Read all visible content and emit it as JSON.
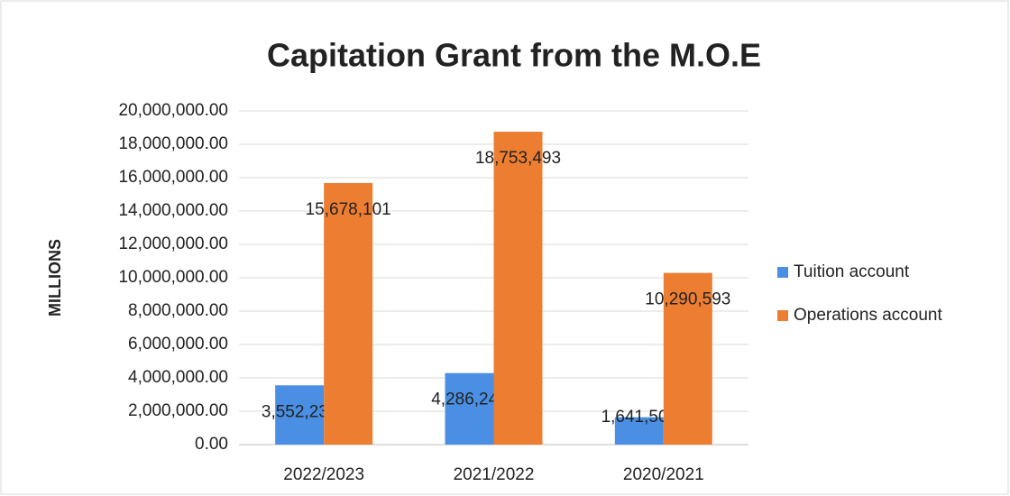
{
  "chart_data": {
    "type": "bar",
    "title": "Capitation Grant from the M.O.E",
    "y_label": "MILLIONS",
    "categories": [
      "2022/2023",
      "2021/2022",
      "2020/2021"
    ],
    "series": [
      {
        "name": "Tuition account",
        "color": "#4a8fe3",
        "values": [
          3552233,
          4286245,
          1641504
        ],
        "value_labels": [
          "3,552,233",
          "4,286,245",
          "1,641,504"
        ]
      },
      {
        "name": "Operations account",
        "color": "#ed7d31",
        "values": [
          15678101,
          18753493,
          10290593
        ],
        "value_labels": [
          "15,678,101",
          "18,753,493",
          "10,290,593"
        ]
      }
    ],
    "ylim": [
      0,
      20000000
    ],
    "yticks": [
      {
        "value": 0,
        "label": "0.00"
      },
      {
        "value": 2000000,
        "label": "2,000,000.00"
      },
      {
        "value": 4000000,
        "label": "4,000,000.00"
      },
      {
        "value": 6000000,
        "label": "6,000,000.00"
      },
      {
        "value": 8000000,
        "label": "8,000,000.00"
      },
      {
        "value": 10000000,
        "label": "10,000,000.00"
      },
      {
        "value": 12000000,
        "label": "12,000,000.00"
      },
      {
        "value": 14000000,
        "label": "14,000,000.00"
      },
      {
        "value": 16000000,
        "label": "16,000,000.00"
      },
      {
        "value": 18000000,
        "label": "18,000,000.00"
      },
      {
        "value": 20000000,
        "label": "20,000,000.00"
      }
    ],
    "grid": true,
    "legend": "right"
  }
}
